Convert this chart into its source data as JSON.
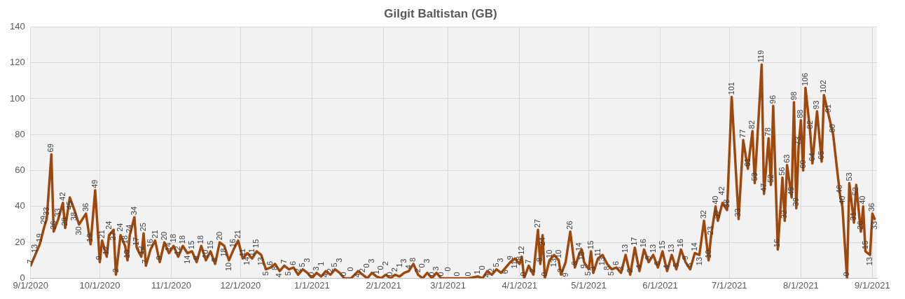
{
  "chart_data": {
    "type": "line",
    "title": "Gilgit Baltistan (GB)",
    "x": [
      "2020-09-01",
      "2020-09-03",
      "2020-09-05",
      "2020-09-07",
      "2020-09-08",
      "2020-09-10",
      "2020-09-11",
      "2020-09-13",
      "2020-09-15",
      "2020-09-16",
      "2020-09-18",
      "2020-09-20",
      "2020-09-22",
      "2020-09-25",
      "2020-09-27",
      "2020-09-29",
      "2020-10-01",
      "2020-10-02",
      "2020-10-04",
      "2020-10-05",
      "2020-10-07",
      "2020-10-08",
      "2020-10-10",
      "2020-10-12",
      "2020-10-13",
      "2020-10-14",
      "2020-10-16",
      "2020-10-17",
      "2020-10-19",
      "2020-10-20",
      "2020-10-21",
      "2020-10-23",
      "2020-10-25",
      "2020-10-27",
      "2020-10-29",
      "2020-10-31",
      "2020-11-02",
      "2020-11-04",
      "2020-11-06",
      "2020-11-08",
      "2020-11-10",
      "2020-11-12",
      "2020-11-14",
      "2020-11-16",
      "2020-11-18",
      "2020-11-20",
      "2020-11-22",
      "2020-11-24",
      "2020-11-26",
      "2020-11-28",
      "2020-11-30",
      "2020-12-02",
      "2020-12-04",
      "2020-12-06",
      "2020-12-08",
      "2020-12-10",
      "2020-12-12",
      "2020-12-14",
      "2020-12-16",
      "2020-12-18",
      "2020-12-20",
      "2020-12-22",
      "2020-12-24",
      "2020-12-26",
      "2020-12-28",
      "2020-12-30",
      "2021-01-01",
      "2021-01-03",
      "2021-01-05",
      "2021-01-07",
      "2021-01-09",
      "2021-01-11",
      "2021-01-13",
      "2021-01-15",
      "2021-01-18",
      "2021-01-21",
      "2021-01-23",
      "2021-01-25",
      "2021-01-27",
      "2021-01-29",
      "2021-01-31",
      "2021-02-02",
      "2021-02-04",
      "2021-02-06",
      "2021-02-08",
      "2021-02-10",
      "2021-02-12",
      "2021-02-14",
      "2021-02-16",
      "2021-02-18",
      "2021-02-20",
      "2021-02-22",
      "2021-02-24",
      "2021-02-26",
      "2021-03-01",
      "2021-03-05",
      "2021-03-10",
      "2021-03-14",
      "2021-03-16",
      "2021-03-18",
      "2021-03-20",
      "2021-03-22",
      "2021-03-24",
      "2021-03-26",
      "2021-03-28",
      "2021-03-30",
      "2021-04-01",
      "2021-04-02",
      "2021-04-03",
      "2021-04-05",
      "2021-04-07",
      "2021-04-09",
      "2021-04-10",
      "2021-04-11",
      "2021-04-12",
      "2021-04-14",
      "2021-04-16",
      "2021-04-18",
      "2021-04-19",
      "2021-04-21",
      "2021-04-23",
      "2021-04-25",
      "2021-04-27",
      "2021-04-28",
      "2021-04-29",
      "2021-05-01",
      "2021-05-02",
      "2021-05-03",
      "2021-05-05",
      "2021-05-07",
      "2021-05-09",
      "2021-05-11",
      "2021-05-13",
      "2021-05-15",
      "2021-05-17",
      "2021-05-19",
      "2021-05-21",
      "2021-05-23",
      "2021-05-25",
      "2021-05-27",
      "2021-05-29",
      "2021-05-31",
      "2021-06-02",
      "2021-06-04",
      "2021-06-06",
      "2021-06-08",
      "2021-06-10",
      "2021-06-12",
      "2021-06-14",
      "2021-06-16",
      "2021-06-18",
      "2021-06-20",
      "2021-06-22",
      "2021-06-23",
      "2021-06-25",
      "2021-06-26",
      "2021-06-28",
      "2021-06-30",
      "2021-07-02",
      "2021-07-05",
      "2021-07-07",
      "2021-07-09",
      "2021-07-11",
      "2021-07-12",
      "2021-07-15",
      "2021-07-16",
      "2021-07-18",
      "2021-07-19",
      "2021-07-20",
      "2021-07-22",
      "2021-07-24",
      "2021-07-25",
      "2021-07-26",
      "2021-07-28",
      "2021-07-29",
      "2021-07-30",
      "2021-07-31",
      "2021-08-01",
      "2021-08-02",
      "2021-08-03",
      "2021-08-05",
      "2021-08-06",
      "2021-08-08",
      "2021-08-10",
      "2021-08-11",
      "2021-08-13",
      "2021-08-15",
      "2021-08-18",
      "2021-08-19",
      "2021-08-21",
      "2021-08-22",
      "2021-08-24",
      "2021-08-25",
      "2021-08-27",
      "2021-08-28",
      "2021-08-29",
      "2021-08-31",
      "2021-09-01",
      "2021-09-02"
    ],
    "values": [
      7,
      13,
      19,
      29,
      33,
      69,
      26,
      33,
      42,
      28,
      45,
      38,
      30,
      36,
      19,
      49,
      9,
      21,
      12,
      24,
      27,
      2,
      24,
      18,
      10,
      24,
      34,
      17,
      12,
      25,
      7,
      16,
      21,
      9,
      20,
      14,
      18,
      12,
      18,
      14,
      15,
      9,
      18,
      10,
      15,
      8,
      20,
      18,
      10,
      16,
      21,
      11,
      14,
      11,
      15,
      13,
      5,
      6,
      8,
      4,
      7,
      5,
      6,
      2,
      5,
      3,
      0,
      3,
      1,
      4,
      2,
      5,
      3,
      0,
      0,
      4,
      2,
      0,
      3,
      1,
      0,
      2,
      0,
      2,
      1,
      3,
      4,
      8,
      2,
      0,
      3,
      0,
      3,
      0,
      0,
      0,
      0,
      1,
      0,
      4,
      2,
      5,
      3,
      6,
      9,
      11,
      8,
      12,
      0,
      7,
      2,
      27,
      8,
      24,
      0,
      10,
      13,
      10,
      2,
      9,
      26,
      6,
      14,
      16,
      9,
      5,
      15,
      3,
      11,
      13,
      8,
      5,
      6,
      3,
      13,
      2,
      17,
      4,
      16,
      9,
      13,
      6,
      15,
      4,
      13,
      5,
      16,
      9,
      5,
      14,
      13,
      32,
      10,
      23,
      40,
      32,
      42,
      38,
      101,
      33,
      77,
      61,
      82,
      53,
      119,
      47,
      78,
      52,
      96,
      16,
      56,
      32,
      63,
      45,
      98,
      39,
      73,
      88,
      60,
      106,
      82,
      64,
      93,
      65,
      102,
      91,
      80,
      46,
      40,
      0,
      53,
      31,
      52,
      26,
      40,
      15,
      13,
      36,
      33
    ],
    "color": "#9e480e",
    "data_labels": true,
    "marker": "none",
    "grid": true,
    "legend": false,
    "xlim": [
      "2020-09-01",
      "2021-09-03"
    ],
    "xticks": [
      {
        "value": "2020-09-01",
        "label": "9/1/2020"
      },
      {
        "value": "2020-10-01",
        "label": "10/1/2020"
      },
      {
        "value": "2020-11-01",
        "label": "11/1/2020"
      },
      {
        "value": "2020-12-01",
        "label": "12/1/2020"
      },
      {
        "value": "2021-01-01",
        "label": "1/1/2021"
      },
      {
        "value": "2021-02-01",
        "label": "2/1/2021"
      },
      {
        "value": "2021-03-01",
        "label": "3/1/2021"
      },
      {
        "value": "2021-04-01",
        "label": "4/1/2021"
      },
      {
        "value": "2021-05-01",
        "label": "5/1/2021"
      },
      {
        "value": "2021-06-01",
        "label": "6/1/2021"
      },
      {
        "value": "2021-07-01",
        "label": "7/1/2021"
      },
      {
        "value": "2021-08-01",
        "label": "8/1/2021"
      },
      {
        "value": "2021-09-01",
        "label": "9/1/2021"
      }
    ],
    "ylim": [
      0,
      140
    ],
    "yticks": [
      0,
      20,
      40,
      60,
      80,
      100,
      120,
      140
    ]
  }
}
